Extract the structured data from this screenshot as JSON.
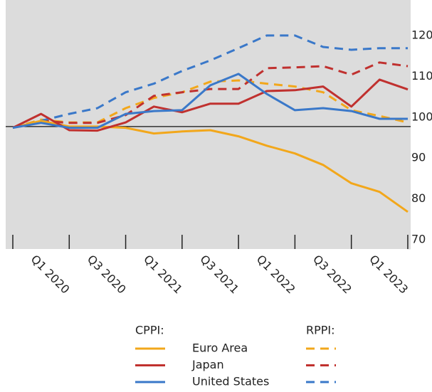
{
  "chart_data": {
    "type": "line",
    "categories": [
      null,
      "Q1 2020",
      null,
      "Q3 2020",
      null,
      "Q1 2021",
      null,
      "Q3 2021",
      null,
      "Q1 2022",
      null,
      "Q3 2022",
      null,
      "Q1 2023",
      null
    ],
    "ylim": [
      70,
      131
    ],
    "yticks": [
      70,
      80,
      90,
      100,
      110,
      120
    ],
    "hline": 100,
    "groups": [
      "CPPI:",
      "RPPI:"
    ],
    "series": [
      {
        "name": "Euro Area",
        "color": "#f2a71b",
        "cppi": [
          99.7,
          101.4,
          100,
          100,
          99.7,
          98.3,
          98.8,
          99.1,
          97.6,
          95.3,
          93.4,
          90.6,
          86.1,
          84.0,
          79.1
        ],
        "rppi": [
          99.7,
          101.7,
          101.0,
          101.0,
          104.5,
          107.0,
          108.4,
          111.0,
          111.3,
          110.5,
          109.8,
          108.4,
          104.0,
          102.6,
          101.0
        ]
      },
      {
        "name": "Japan",
        "color": "#c0312f",
        "cppi": [
          99.7,
          103.1,
          99.1,
          99.0,
          101.0,
          104.9,
          103.5,
          105.6,
          105.6,
          108.7,
          108.9,
          109.8,
          104.9,
          111.5,
          109.1
        ],
        "rppi": [
          99.7,
          101.4,
          100.9,
          100.9,
          102.8,
          107.5,
          108.4,
          109.2,
          109.2,
          114.3,
          114.5,
          114.8,
          112.7,
          115.7,
          114.8
        ]
      },
      {
        "name": "United States",
        "color": "#3a78c9",
        "cppi": [
          99.7,
          100.9,
          99.7,
          99.7,
          103.1,
          103.8,
          104.0,
          110.1,
          112.9,
          108.0,
          104.0,
          104.5,
          103.8,
          101.9,
          101.9
        ],
        "rppi": [
          99.7,
          101.4,
          103.1,
          104.5,
          108.4,
          110.5,
          113.6,
          116.2,
          119.2,
          122.3,
          122.3,
          119.5,
          118.8,
          119.2,
          119.2
        ]
      }
    ]
  }
}
